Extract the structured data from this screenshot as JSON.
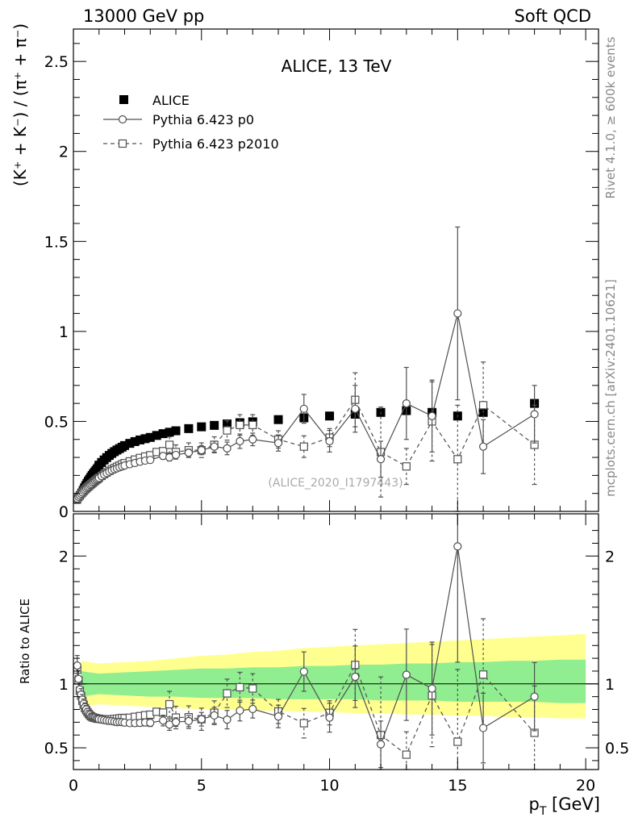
{
  "header": {
    "left": "13000 GeV pp",
    "right": "Soft QCD"
  },
  "side_labels": {
    "rivet": "Rivet 4.1.0, ≥ 600k events",
    "mcplots": "mcplots.cern.ch [arXiv:2401.10621]"
  },
  "chart_data": {
    "type": "scatter",
    "title": "ALICE, 13 TeV",
    "analysis_id": "(ALICE_2020_I1797443)",
    "xlabel": "p_T [GeV]",
    "xlabel_main": "p",
    "xlabel_sub": "T",
    "xlabel_unit": " [GeV]",
    "ylabel": "(K⁺ + K⁻) / (π⁺ + π⁻)",
    "ylabel_ratio": "Ratio to ALICE",
    "xlim": [
      0,
      20.5
    ],
    "ylim": [
      0,
      2.68
    ],
    "ylim_ratio": [
      0.33,
      2.33
    ],
    "x_ticks": [
      0,
      5,
      10,
      15,
      20
    ],
    "x_tick_labels": [
      "0",
      "5",
      "10",
      "15",
      "20"
    ],
    "y_ticks": [
      0,
      0.5,
      1,
      1.5,
      2,
      2.5
    ],
    "y_tick_labels": [
      "0",
      "0.5",
      "1",
      "1.5",
      "2",
      "2.5"
    ],
    "y_ticks_ratio": [
      0.5,
      1,
      2
    ],
    "y_tick_labels_ratio": [
      "0.5",
      "1",
      "2"
    ],
    "legend": [
      {
        "name": "ALICE",
        "style": "filled-square"
      },
      {
        "name": "Pythia 6.423 p0",
        "style": "solid-circle"
      },
      {
        "name": "Pythia 6.423 p2010",
        "style": "dashed-square"
      }
    ],
    "colors": {
      "data": "#000000",
      "mc": "#505050",
      "band_inner": "#90ee90",
      "band_outer": "#ffff90"
    },
    "x": [
      0.15,
      0.2,
      0.25,
      0.3,
      0.35,
      0.4,
      0.45,
      0.5,
      0.55,
      0.6,
      0.65,
      0.7,
      0.75,
      0.8,
      0.85,
      0.9,
      0.95,
      1.0,
      1.1,
      1.2,
      1.3,
      1.4,
      1.5,
      1.6,
      1.7,
      1.8,
      1.9,
      2.0,
      2.2,
      2.4,
      2.6,
      2.8,
      3.0,
      3.25,
      3.5,
      3.75,
      4.0,
      4.5,
      5.0,
      5.5,
      6.0,
      6.5,
      7.0,
      8.0,
      9.0,
      10.0,
      11.0,
      12.0,
      13.0,
      14.0,
      15.0,
      16.0,
      18.0
    ],
    "xerr": [
      0.025,
      0.025,
      0.025,
      0.025,
      0.025,
      0.025,
      0.025,
      0.025,
      0.025,
      0.025,
      0.025,
      0.025,
      0.025,
      0.025,
      0.025,
      0.025,
      0.025,
      0.05,
      0.05,
      0.05,
      0.05,
      0.05,
      0.05,
      0.05,
      0.05,
      0.05,
      0.05,
      0.1,
      0.1,
      0.1,
      0.1,
      0.1,
      0.125,
      0.125,
      0.125,
      0.125,
      0.25,
      0.25,
      0.25,
      0.25,
      0.25,
      0.25,
      0.5,
      0.5,
      0.5,
      0.5,
      0.5,
      0.5,
      0.5,
      0.5,
      0.5,
      1.0,
      1.0
    ],
    "data_y": [
      0.063,
      0.078,
      0.093,
      0.107,
      0.121,
      0.135,
      0.148,
      0.16,
      0.172,
      0.183,
      0.194,
      0.204,
      0.214,
      0.223,
      0.232,
      0.241,
      0.249,
      0.257,
      0.272,
      0.286,
      0.299,
      0.311,
      0.322,
      0.332,
      0.341,
      0.349,
      0.357,
      0.366,
      0.378,
      0.388,
      0.397,
      0.404,
      0.411,
      0.422,
      0.432,
      0.44,
      0.448,
      0.46,
      0.47,
      0.478,
      0.486,
      0.493,
      0.498,
      0.51,
      0.52,
      0.53,
      0.54,
      0.55,
      0.56,
      0.55,
      0.53,
      0.55,
      0.6
    ],
    "series": [
      {
        "name": "Pythia 6.423 p0",
        "x": [
          0.15,
          0.2,
          0.25,
          0.3,
          0.35,
          0.4,
          0.45,
          0.5,
          0.55,
          0.6,
          0.65,
          0.7,
          0.75,
          0.8,
          0.85,
          0.9,
          0.95,
          1.0,
          1.1,
          1.2,
          1.3,
          1.4,
          1.5,
          1.6,
          1.7,
          1.8,
          1.9,
          2.0,
          2.2,
          2.4,
          2.6,
          2.8,
          3.0,
          3.5,
          3.75,
          4.0,
          4.5,
          5.0,
          5.5,
          6.0,
          6.5,
          7.0,
          8.0,
          9.0,
          10.0,
          11.0,
          12.0,
          13.0,
          14.0,
          15.0,
          16.0,
          18.0
        ],
        "y": [
          0.072,
          0.081,
          0.089,
          0.098,
          0.106,
          0.114,
          0.121,
          0.128,
          0.134,
          0.14,
          0.147,
          0.152,
          0.159,
          0.165,
          0.171,
          0.176,
          0.181,
          0.186,
          0.196,
          0.205,
          0.213,
          0.221,
          0.228,
          0.234,
          0.239,
          0.245,
          0.25,
          0.255,
          0.262,
          0.269,
          0.276,
          0.282,
          0.286,
          0.308,
          0.3,
          0.314,
          0.326,
          0.34,
          0.36,
          0.35,
          0.39,
          0.4,
          0.38,
          0.57,
          0.39,
          0.57,
          0.29,
          0.6,
          0.53,
          1.1,
          0.36,
          0.54
        ],
        "err": [
          0.005,
          0.005,
          0.005,
          0.005,
          0.005,
          0.005,
          0.005,
          0.005,
          0.005,
          0.005,
          0.005,
          0.005,
          0.005,
          0.005,
          0.005,
          0.005,
          0.005,
          0.005,
          0.006,
          0.006,
          0.006,
          0.006,
          0.006,
          0.007,
          0.007,
          0.007,
          0.008,
          0.008,
          0.009,
          0.01,
          0.01,
          0.011,
          0.012,
          0.018,
          0.02,
          0.015,
          0.02,
          0.025,
          0.03,
          0.035,
          0.04,
          0.035,
          0.045,
          0.08,
          0.06,
          0.13,
          0.1,
          0.2,
          0.2,
          0.48,
          0.15,
          0.16
        ]
      },
      {
        "name": "Pythia 6.423 p2010",
        "x": [
          0.15,
          0.2,
          0.25,
          0.3,
          0.35,
          0.4,
          0.45,
          0.5,
          0.55,
          0.6,
          0.65,
          0.7,
          0.75,
          0.8,
          0.85,
          0.9,
          0.95,
          1.0,
          1.1,
          1.2,
          1.3,
          1.4,
          1.5,
          1.6,
          1.7,
          1.8,
          1.9,
          2.0,
          2.2,
          2.4,
          2.6,
          2.8,
          3.0,
          3.25,
          3.5,
          3.75,
          4.0,
          4.5,
          5.0,
          5.5,
          6.0,
          6.5,
          7.0,
          8.0,
          9.0,
          10.0,
          11.0,
          12.0,
          13.0,
          14.0,
          15.0,
          16.0,
          18.0
        ],
        "y": [
          0.07,
          0.08,
          0.088,
          0.097,
          0.105,
          0.113,
          0.12,
          0.127,
          0.134,
          0.14,
          0.146,
          0.152,
          0.158,
          0.164,
          0.17,
          0.176,
          0.181,
          0.187,
          0.197,
          0.207,
          0.216,
          0.225,
          0.233,
          0.241,
          0.248,
          0.255,
          0.262,
          0.268,
          0.278,
          0.288,
          0.297,
          0.305,
          0.312,
          0.33,
          0.335,
          0.37,
          0.33,
          0.34,
          0.34,
          0.37,
          0.45,
          0.48,
          0.48,
          0.4,
          0.36,
          0.41,
          0.62,
          0.33,
          0.25,
          0.5,
          0.29,
          0.59,
          0.37
        ]
      }
    ],
    "ratio_band": {
      "x_edges": [
        0.3,
        1.0,
        2.0,
        3.0,
        4.0,
        5.0,
        6.0,
        7.0,
        8.0,
        9.0,
        10.0,
        11.0,
        12.0,
        13.0,
        14.0,
        15.0,
        16.0,
        17.0,
        18.0,
        19.0,
        20.0
      ],
      "inner_lo": [
        0.9,
        0.92,
        0.91,
        0.9,
        0.9,
        0.89,
        0.89,
        0.89,
        0.88,
        0.88,
        0.88,
        0.88,
        0.87,
        0.87,
        0.87,
        0.86,
        0.86,
        0.86,
        0.86,
        0.85,
        0.85
      ],
      "inner_hi": [
        1.1,
        1.08,
        1.09,
        1.1,
        1.11,
        1.12,
        1.12,
        1.13,
        1.13,
        1.14,
        1.14,
        1.15,
        1.15,
        1.16,
        1.16,
        1.17,
        1.17,
        1.18,
        1.18,
        1.19,
        1.19
      ],
      "outer_lo": [
        0.82,
        0.84,
        0.83,
        0.82,
        0.81,
        0.8,
        0.8,
        0.79,
        0.79,
        0.78,
        0.78,
        0.77,
        0.77,
        0.76,
        0.76,
        0.75,
        0.75,
        0.74,
        0.74,
        0.73,
        0.73
      ],
      "outer_hi": [
        1.18,
        1.16,
        1.17,
        1.18,
        1.2,
        1.22,
        1.23,
        1.25,
        1.26,
        1.28,
        1.29,
        1.3,
        1.31,
        1.32,
        1.33,
        1.34,
        1.35,
        1.36,
        1.37,
        1.38,
        1.39
      ]
    }
  }
}
